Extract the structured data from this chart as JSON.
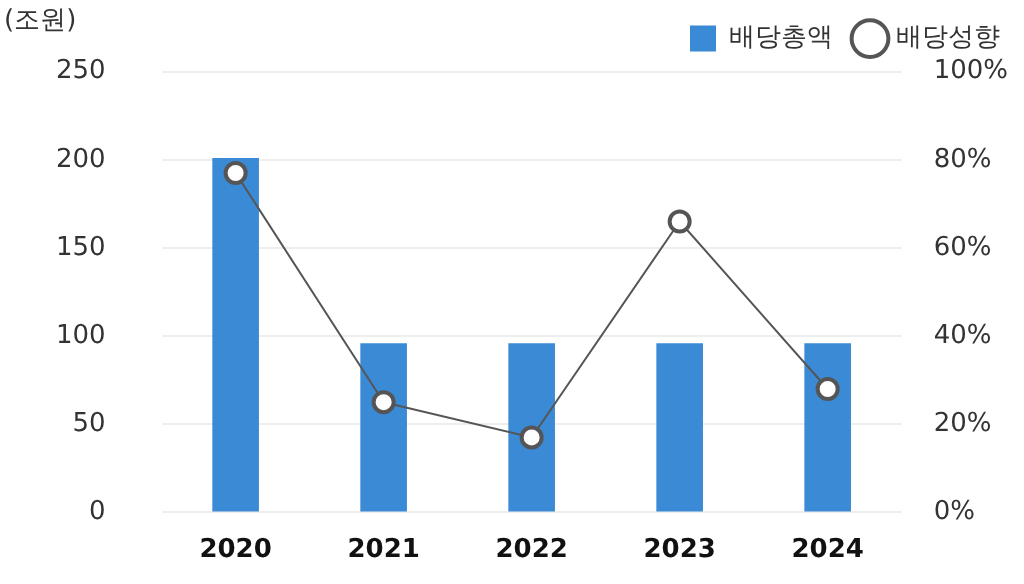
{
  "chart_data": {
    "type": "bar",
    "ylabel": "(조원)",
    "categories": [
      "2020",
      "2021",
      "2022",
      "2023",
      "2024"
    ],
    "series": [
      {
        "name": "배당총액",
        "color": "#3a8ad6",
        "values": [
          201,
          96,
          96,
          96,
          96
        ]
      },
      {
        "name": "배당성향",
        "type": "line",
        "axis": "y2",
        "color": "#555555",
        "values": [
          77,
          25,
          17,
          66,
          28
        ]
      }
    ],
    "ylim": [
      0,
      250
    ],
    "yticks": [
      0,
      50,
      100,
      150,
      200,
      250
    ],
    "y2lim": [
      0,
      100
    ],
    "y2ticks": [
      {
        "value": 0,
        "label": "0%"
      },
      {
        "value": 20,
        "label": "20%"
      },
      {
        "value": 40,
        "label": "40%"
      },
      {
        "value": 60,
        "label": "60%"
      },
      {
        "value": 80,
        "label": "80%"
      },
      {
        "value": 100,
        "label": "100%"
      }
    ],
    "grid": "y",
    "legend": "top right",
    "marker": "circle",
    "line_style": "solid"
  }
}
